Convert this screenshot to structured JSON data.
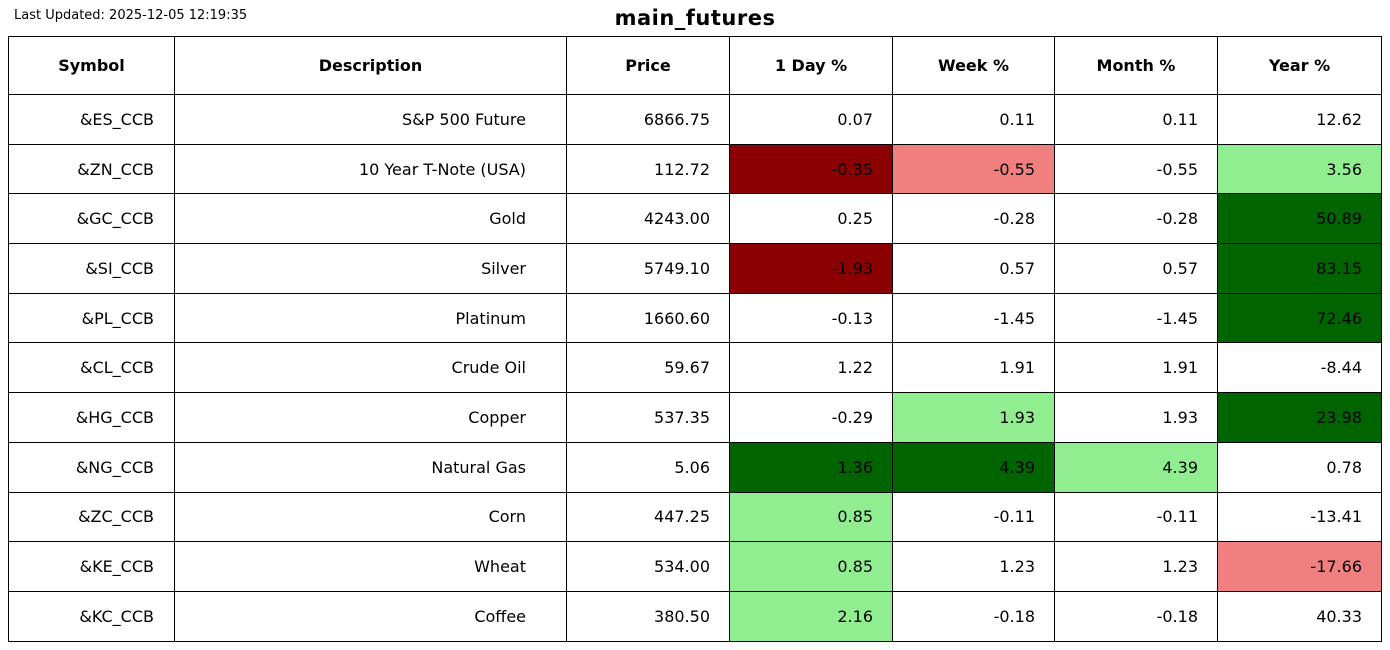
{
  "meta": {
    "last_updated": "Last Updated: 2025-12-05 12:19:35",
    "title": "main_futures"
  },
  "colors": {
    "strong_down": "#8B0000",
    "down": "#F08080",
    "up": "#90EE90",
    "strong_up": "#006400"
  },
  "table": {
    "columns": [
      "Symbol",
      "Description",
      "Price",
      "1 Day %",
      "Week %",
      "Month %",
      "Year %"
    ],
    "rows": [
      {
        "cells": [
          "&ES_CCB",
          "S&P 500 Future",
          "6866.75",
          "0.07",
          "0.11",
          "0.11",
          "12.62"
        ],
        "bg": [
          null,
          null,
          null,
          null,
          null,
          null,
          null
        ]
      },
      {
        "cells": [
          "&ZN_CCB",
          "10 Year T-Note (USA)",
          "112.72",
          "-0.35",
          "-0.55",
          "-0.55",
          "3.56"
        ],
        "bg": [
          null,
          null,
          null,
          "strong_down",
          "down",
          null,
          "up"
        ]
      },
      {
        "cells": [
          "&GC_CCB",
          "Gold",
          "4243.00",
          "0.25",
          "-0.28",
          "-0.28",
          "50.89"
        ],
        "bg": [
          null,
          null,
          null,
          null,
          null,
          null,
          "strong_up"
        ]
      },
      {
        "cells": [
          "&SI_CCB",
          "Silver",
          "5749.10",
          "-1.93",
          "0.57",
          "0.57",
          "83.15"
        ],
        "bg": [
          null,
          null,
          null,
          "strong_down",
          null,
          null,
          "strong_up"
        ]
      },
      {
        "cells": [
          "&PL_CCB",
          "Platinum",
          "1660.60",
          "-0.13",
          "-1.45",
          "-1.45",
          "72.46"
        ],
        "bg": [
          null,
          null,
          null,
          null,
          null,
          null,
          "strong_up"
        ]
      },
      {
        "cells": [
          "&CL_CCB",
          "Crude Oil",
          "59.67",
          "1.22",
          "1.91",
          "1.91",
          "-8.44"
        ],
        "bg": [
          null,
          null,
          null,
          null,
          null,
          null,
          null
        ]
      },
      {
        "cells": [
          "&HG_CCB",
          "Copper",
          "537.35",
          "-0.29",
          "1.93",
          "1.93",
          "23.98"
        ],
        "bg": [
          null,
          null,
          null,
          null,
          "up",
          null,
          "strong_up"
        ]
      },
      {
        "cells": [
          "&NG_CCB",
          "Natural Gas",
          "5.06",
          "1.36",
          "4.39",
          "4.39",
          "0.78"
        ],
        "bg": [
          null,
          null,
          null,
          "strong_up",
          "strong_up",
          "up",
          null
        ]
      },
      {
        "cells": [
          "&ZC_CCB",
          "Corn",
          "447.25",
          "0.85",
          "-0.11",
          "-0.11",
          "-13.41"
        ],
        "bg": [
          null,
          null,
          null,
          "up",
          null,
          null,
          null
        ]
      },
      {
        "cells": [
          "&KE_CCB",
          "Wheat",
          "534.00",
          "0.85",
          "1.23",
          "1.23",
          "-17.66"
        ],
        "bg": [
          null,
          null,
          null,
          "up",
          null,
          null,
          "down"
        ]
      },
      {
        "cells": [
          "&KC_CCB",
          "Coffee",
          "380.50",
          "2.16",
          "-0.18",
          "-0.18",
          "40.33"
        ],
        "bg": [
          null,
          null,
          null,
          "up",
          null,
          null,
          null
        ]
      }
    ]
  }
}
